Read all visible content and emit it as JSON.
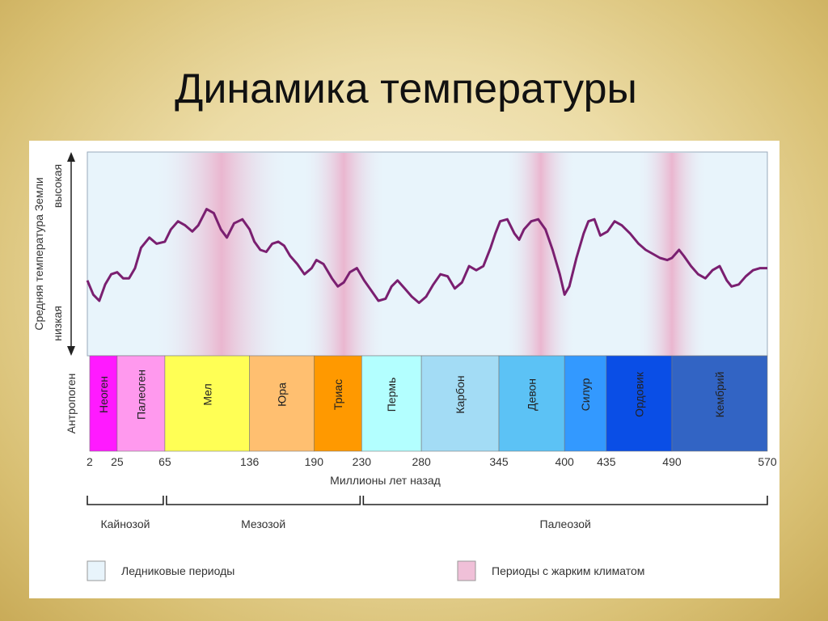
{
  "title": "Динамика температуры",
  "yaxis": {
    "label": "Средняя температура Земли",
    "high": "высокая",
    "low": "низкая"
  },
  "xaxis": {
    "label": "Миллионы лет назад",
    "ticks": [
      {
        "v": 2,
        "label": "2"
      },
      {
        "v": 25,
        "label": "25"
      },
      {
        "v": 65,
        "label": "65"
      },
      {
        "v": 136,
        "label": "136"
      },
      {
        "v": 190,
        "label": "190"
      },
      {
        "v": 230,
        "label": "230"
      },
      {
        "v": 280,
        "label": "280"
      },
      {
        "v": 345,
        "label": "345"
      },
      {
        "v": 400,
        "label": "400"
      },
      {
        "v": 435,
        "label": "435"
      },
      {
        "v": 490,
        "label": "490"
      },
      {
        "v": 570,
        "label": "570"
      }
    ]
  },
  "periods": [
    {
      "name": "Антропоген",
      "from": 0,
      "to": 2,
      "color": "#ffffff",
      "outside": true
    },
    {
      "name": "Неоген",
      "from": 2,
      "to": 25,
      "color": "#ff1aff"
    },
    {
      "name": "Палеоген",
      "from": 25,
      "to": 65,
      "color": "#ff99ee"
    },
    {
      "name": "Мел",
      "from": 65,
      "to": 136,
      "color": "#ffff55"
    },
    {
      "name": "Юра",
      "from": 136,
      "to": 190,
      "color": "#ffbf70"
    },
    {
      "name": "Триас",
      "from": 190,
      "to": 230,
      "color": "#ff9900"
    },
    {
      "name": "Пермь",
      "from": 230,
      "to": 280,
      "color": "#b3ffff"
    },
    {
      "name": "Карбон",
      "from": 280,
      "to": 345,
      "color": "#a3dcf5"
    },
    {
      "name": "Девон",
      "from": 345,
      "to": 400,
      "color": "#5cc2f5"
    },
    {
      "name": "Силур",
      "from": 400,
      "to": 435,
      "color": "#3399ff"
    },
    {
      "name": "Ордовик",
      "from": 435,
      "to": 490,
      "color": "#0a4ee6"
    },
    {
      "name": "Кембрий",
      "from": 490,
      "to": 570,
      "color": "#3264c4"
    }
  ],
  "eras": [
    {
      "name": "Кайнозой",
      "from": 0,
      "to": 65
    },
    {
      "name": "Мезозой",
      "from": 65,
      "to": 230
    },
    {
      "name": "Палеозой",
      "from": 230,
      "to": 570
    }
  ],
  "legend": [
    {
      "label": "Ледниковые периоды",
      "color": "#e8f4fb"
    },
    {
      "label": "Периоды с жарким климатом",
      "color": "#f0c0d8"
    }
  ],
  "colors": {
    "curve": "#7a1f70",
    "cold": "#e8f4fb",
    "warm": "#eab6cf"
  },
  "warm_zones": [
    [
      55,
      170
    ],
    [
      180,
      250
    ],
    [
      350,
      410
    ],
    [
      460,
      520
    ]
  ],
  "temperature_curve": [
    [
      0,
      0.37
    ],
    [
      5,
      0.3
    ],
    [
      10,
      0.27
    ],
    [
      15,
      0.35
    ],
    [
      20,
      0.4
    ],
    [
      25,
      0.41
    ],
    [
      30,
      0.38
    ],
    [
      35,
      0.38
    ],
    [
      40,
      0.43
    ],
    [
      45,
      0.53
    ],
    [
      52,
      0.58
    ],
    [
      58,
      0.55
    ],
    [
      65,
      0.56
    ],
    [
      70,
      0.62
    ],
    [
      76,
      0.66
    ],
    [
      82,
      0.64
    ],
    [
      88,
      0.61
    ],
    [
      93,
      0.64
    ],
    [
      100,
      0.72
    ],
    [
      106,
      0.7
    ],
    [
      112,
      0.62
    ],
    [
      117,
      0.58
    ],
    [
      123,
      0.65
    ],
    [
      130,
      0.67
    ],
    [
      136,
      0.62
    ],
    [
      140,
      0.56
    ],
    [
      145,
      0.52
    ],
    [
      150,
      0.51
    ],
    [
      155,
      0.55
    ],
    [
      160,
      0.56
    ],
    [
      165,
      0.54
    ],
    [
      170,
      0.49
    ],
    [
      176,
      0.45
    ],
    [
      182,
      0.4
    ],
    [
      188,
      0.43
    ],
    [
      192,
      0.47
    ],
    [
      198,
      0.45
    ],
    [
      205,
      0.38
    ],
    [
      210,
      0.34
    ],
    [
      215,
      0.36
    ],
    [
      220,
      0.41
    ],
    [
      226,
      0.43
    ],
    [
      232,
      0.37
    ],
    [
      238,
      0.32
    ],
    [
      244,
      0.27
    ],
    [
      250,
      0.28
    ],
    [
      255,
      0.34
    ],
    [
      260,
      0.37
    ],
    [
      266,
      0.33
    ],
    [
      272,
      0.29
    ],
    [
      278,
      0.26
    ],
    [
      284,
      0.29
    ],
    [
      290,
      0.35
    ],
    [
      296,
      0.4
    ],
    [
      302,
      0.39
    ],
    [
      308,
      0.33
    ],
    [
      314,
      0.36
    ],
    [
      320,
      0.44
    ],
    [
      326,
      0.42
    ],
    [
      332,
      0.44
    ],
    [
      338,
      0.53
    ],
    [
      342,
      0.6
    ],
    [
      346,
      0.66
    ],
    [
      352,
      0.67
    ],
    [
      358,
      0.6
    ],
    [
      362,
      0.57
    ],
    [
      366,
      0.62
    ],
    [
      372,
      0.66
    ],
    [
      378,
      0.67
    ],
    [
      384,
      0.62
    ],
    [
      390,
      0.52
    ],
    [
      396,
      0.4
    ],
    [
      400,
      0.3
    ],
    [
      404,
      0.34
    ],
    [
      410,
      0.48
    ],
    [
      416,
      0.6
    ],
    [
      420,
      0.66
    ],
    [
      425,
      0.67
    ],
    [
      430,
      0.59
    ],
    [
      436,
      0.61
    ],
    [
      442,
      0.66
    ],
    [
      448,
      0.64
    ],
    [
      455,
      0.6
    ],
    [
      462,
      0.55
    ],
    [
      468,
      0.52
    ],
    [
      474,
      0.5
    ],
    [
      480,
      0.48
    ],
    [
      486,
      0.47
    ],
    [
      490,
      0.48
    ],
    [
      496,
      0.52
    ],
    [
      500,
      0.49
    ],
    [
      506,
      0.44
    ],
    [
      512,
      0.4
    ],
    [
      518,
      0.38
    ],
    [
      524,
      0.42
    ],
    [
      530,
      0.44
    ],
    [
      536,
      0.37
    ],
    [
      540,
      0.34
    ],
    [
      546,
      0.35
    ],
    [
      552,
      0.39
    ],
    [
      558,
      0.42
    ],
    [
      564,
      0.43
    ],
    [
      570,
      0.43
    ]
  ]
}
